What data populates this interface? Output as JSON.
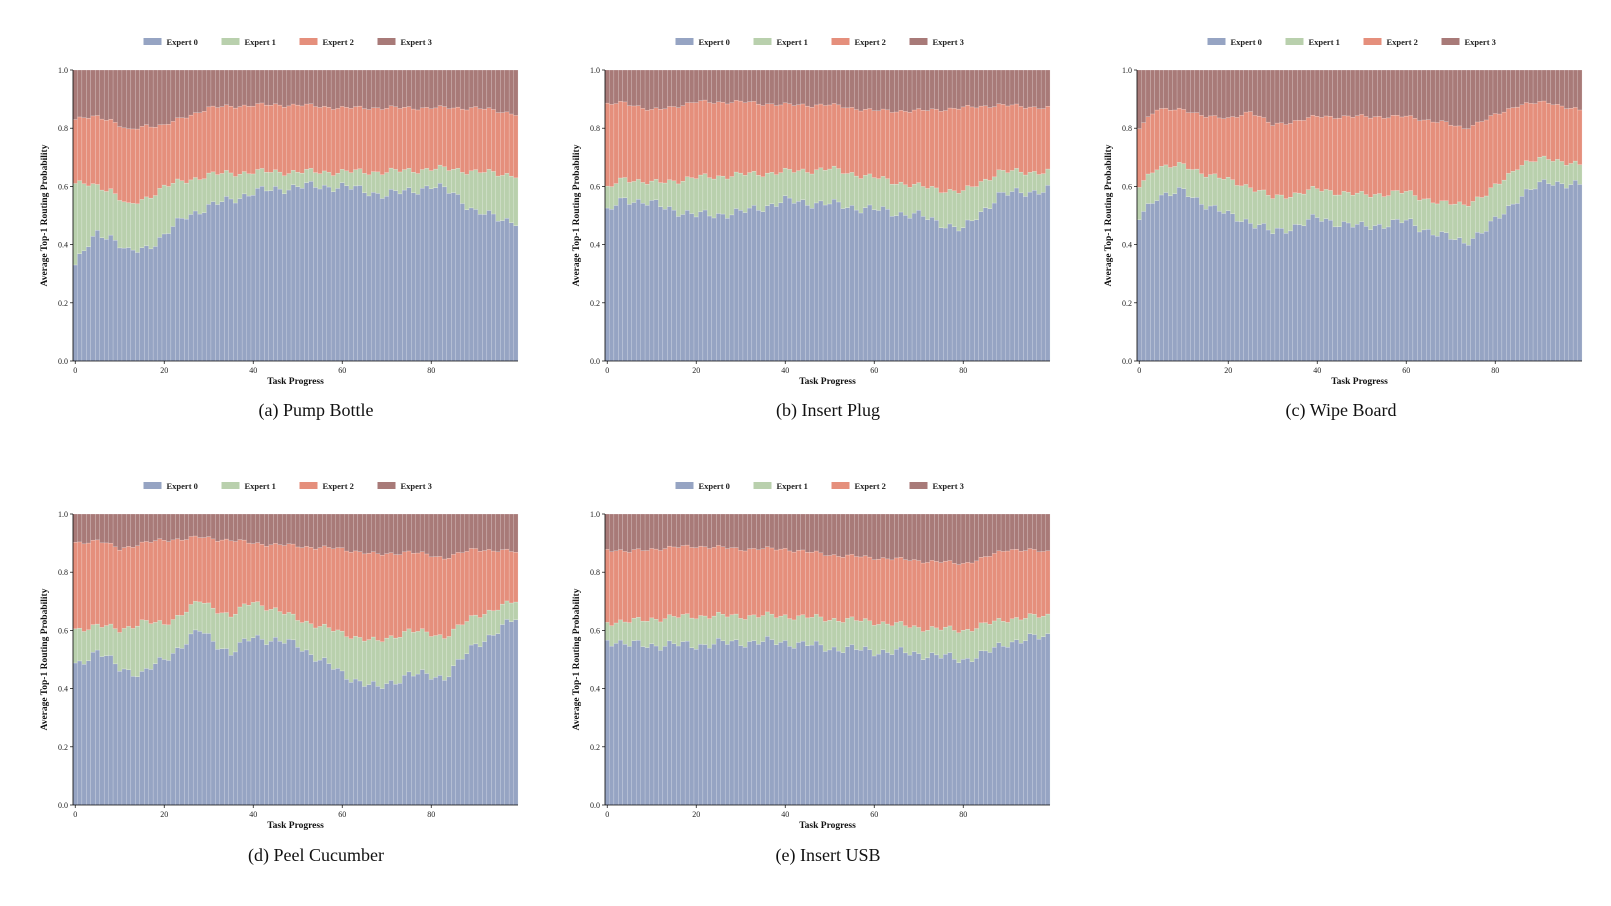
{
  "legend_colors": [
    "#96a4c3",
    "#b9d0ad",
    "#e58f7c",
    "#a87a78"
  ],
  "chart_data": [
    {
      "type": "stacked-bar",
      "caption": "(a) Pump Bottle",
      "xlabel": "Task Progress",
      "ylabel": "Average Top-1 Routing Probability",
      "xlim": [
        0,
        99
      ],
      "ylim": [
        0,
        1
      ],
      "xticks": [
        "0",
        "20",
        "40",
        "60",
        "80"
      ],
      "yticks": [
        "0.0",
        "0.2",
        "0.4",
        "0.6",
        "0.8",
        "1.0"
      ],
      "legend": [
        "Expert 0",
        "Expert 1",
        "Expert 2",
        "Expert 3"
      ],
      "keyframes": {
        "x": [
          0,
          5,
          8,
          12,
          16,
          20,
          25,
          30,
          40,
          50,
          60,
          70,
          80,
          85,
          90,
          99
        ],
        "e0": [
          0.33,
          0.44,
          0.43,
          0.37,
          0.39,
          0.43,
          0.5,
          0.53,
          0.58,
          0.6,
          0.6,
          0.57,
          0.6,
          0.58,
          0.51,
          0.48
        ],
        "e1": [
          0.61,
          0.6,
          0.59,
          0.53,
          0.56,
          0.6,
          0.62,
          0.64,
          0.65,
          0.65,
          0.65,
          0.65,
          0.66,
          0.66,
          0.65,
          0.64
        ],
        "e2": [
          0.83,
          0.84,
          0.83,
          0.79,
          0.81,
          0.81,
          0.84,
          0.87,
          0.88,
          0.88,
          0.87,
          0.87,
          0.87,
          0.87,
          0.87,
          0.85
        ]
      }
    },
    {
      "type": "stacked-bar",
      "caption": "(b) Insert Plug",
      "xlabel": "Task Progress",
      "ylabel": "Average Top-1 Routing Probability",
      "xlim": [
        0,
        99
      ],
      "ylim": [
        0,
        1
      ],
      "xticks": [
        "0",
        "20",
        "40",
        "60",
        "80"
      ],
      "yticks": [
        "0.0",
        "0.2",
        "0.4",
        "0.6",
        "0.8",
        "1.0"
      ],
      "legend": [
        "Expert 0",
        "Expert 1",
        "Expert 2",
        "Expert 3"
      ],
      "keyframes": {
        "x": [
          0,
          4,
          10,
          20,
          30,
          40,
          50,
          60,
          70,
          80,
          88,
          99
        ],
        "e0": [
          0.51,
          0.56,
          0.54,
          0.5,
          0.51,
          0.55,
          0.54,
          0.52,
          0.5,
          0.45,
          0.57,
          0.59
        ],
        "e1": [
          0.59,
          0.63,
          0.61,
          0.63,
          0.64,
          0.65,
          0.66,
          0.63,
          0.6,
          0.58,
          0.65,
          0.65
        ],
        "e2": [
          0.88,
          0.89,
          0.86,
          0.89,
          0.89,
          0.88,
          0.88,
          0.86,
          0.86,
          0.87,
          0.88,
          0.87
        ]
      }
    },
    {
      "type": "stacked-bar",
      "caption": "(c) Wipe Board",
      "xlabel": "Task Progress",
      "ylabel": "Average Top-1 Routing Probability",
      "xlim": [
        0,
        99
      ],
      "ylim": [
        0,
        1
      ],
      "xticks": [
        "0",
        "20",
        "40",
        "60",
        "80"
      ],
      "yticks": [
        "0.0",
        "0.2",
        "0.4",
        "0.6",
        "0.8",
        "1.0"
      ],
      "legend": [
        "Expert 0",
        "Expert 1",
        "Expert 2",
        "Expert 3"
      ],
      "keyframes": {
        "x": [
          0,
          4,
          10,
          20,
          25,
          30,
          40,
          50,
          60,
          68,
          73,
          78,
          85,
          92,
          99
        ],
        "e0": [
          0.49,
          0.57,
          0.58,
          0.5,
          0.48,
          0.44,
          0.49,
          0.46,
          0.48,
          0.43,
          0.41,
          0.45,
          0.56,
          0.62,
          0.6
        ],
        "e1": [
          0.6,
          0.67,
          0.67,
          0.62,
          0.6,
          0.56,
          0.59,
          0.57,
          0.58,
          0.54,
          0.54,
          0.57,
          0.67,
          0.7,
          0.67
        ],
        "e2": [
          0.8,
          0.87,
          0.86,
          0.83,
          0.86,
          0.81,
          0.84,
          0.84,
          0.84,
          0.82,
          0.8,
          0.83,
          0.88,
          0.89,
          0.86
        ]
      }
    },
    {
      "type": "stacked-bar",
      "caption": "(d) Peel Cucumber",
      "xlabel": "Task Progress",
      "ylabel": "Average Top-1 Routing Probability",
      "xlim": [
        0,
        99
      ],
      "ylim": [
        0,
        1
      ],
      "xticks": [
        "0",
        "20",
        "40",
        "60",
        "80"
      ],
      "yticks": [
        "0.0",
        "0.2",
        "0.4",
        "0.6",
        "0.8",
        "1.0"
      ],
      "legend": [
        "Expert 0",
        "Expert 1",
        "Expert 2",
        "Expert 3"
      ],
      "keyframes": {
        "x": [
          0,
          5,
          10,
          15,
          20,
          28,
          35,
          40,
          50,
          60,
          68,
          75,
          83,
          90,
          99
        ],
        "e0": [
          0.48,
          0.53,
          0.47,
          0.45,
          0.5,
          0.6,
          0.52,
          0.58,
          0.55,
          0.45,
          0.4,
          0.45,
          0.44,
          0.55,
          0.64
        ],
        "e1": [
          0.6,
          0.62,
          0.6,
          0.63,
          0.62,
          0.7,
          0.65,
          0.7,
          0.64,
          0.59,
          0.56,
          0.6,
          0.58,
          0.65,
          0.7
        ],
        "e2": [
          0.9,
          0.91,
          0.88,
          0.9,
          0.91,
          0.92,
          0.91,
          0.9,
          0.89,
          0.88,
          0.86,
          0.87,
          0.85,
          0.88,
          0.87
        ]
      }
    },
    {
      "type": "stacked-bar",
      "caption": "(e) Insert USB",
      "xlabel": "Task Progress",
      "ylabel": "Average Top-1 Routing Probability",
      "xlim": [
        0,
        99
      ],
      "ylim": [
        0,
        1
      ],
      "xticks": [
        "0",
        "20",
        "40",
        "60",
        "80"
      ],
      "yticks": [
        "0.0",
        "0.2",
        "0.4",
        "0.6",
        "0.8",
        "1.0"
      ],
      "legend": [
        "Expert 0",
        "Expert 1",
        "Expert 2",
        "Expert 3"
      ],
      "keyframes": {
        "x": [
          0,
          5,
          10,
          20,
          30,
          40,
          50,
          60,
          70,
          80,
          85,
          90,
          99
        ],
        "e0": [
          0.57,
          0.55,
          0.55,
          0.55,
          0.56,
          0.56,
          0.54,
          0.53,
          0.52,
          0.5,
          0.52,
          0.56,
          0.58
        ],
        "e1": [
          0.63,
          0.63,
          0.64,
          0.65,
          0.65,
          0.65,
          0.64,
          0.63,
          0.61,
          0.6,
          0.62,
          0.64,
          0.65
        ],
        "e2": [
          0.88,
          0.87,
          0.88,
          0.89,
          0.88,
          0.88,
          0.86,
          0.85,
          0.84,
          0.83,
          0.85,
          0.88,
          0.87
        ]
      }
    }
  ]
}
